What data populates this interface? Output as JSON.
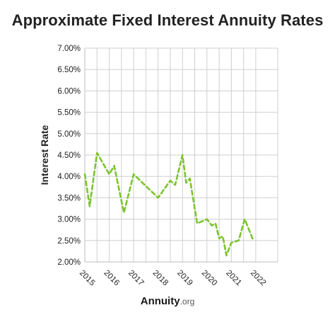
{
  "chart_data": {
    "type": "line",
    "title": "Approximate Fixed Interest Annuity Rates",
    "xlabel": "",
    "ylabel": "Interest Rate",
    "xlim": [
      2015,
      2022.9
    ],
    "ylim": [
      2.0,
      7.0
    ],
    "x_ticks": [
      "2015",
      "2016",
      "2017",
      "2018",
      "2019",
      "2020",
      "2021",
      "2022"
    ],
    "y_ticks": [
      "2.00%",
      "2.50%",
      "3.00%",
      "3.50%",
      "4.00%",
      "4.50%",
      "5.00%",
      "5.50%",
      "6.00%",
      "6.50%",
      "7.00%"
    ],
    "grid": true,
    "line_color": "#7dc42f",
    "line_style": "dashed",
    "series": [
      {
        "x": [
          2015.0,
          2015.2,
          2015.5,
          2016.0,
          2016.2,
          2016.6,
          2017.0,
          2018.0,
          2018.5,
          2018.7,
          2019.0,
          2019.15,
          2019.3,
          2019.6,
          2020.0,
          2020.2,
          2020.35,
          2020.5,
          2020.65,
          2020.8,
          2021.0,
          2021.3,
          2021.55,
          2021.9
        ],
        "y": [
          4.05,
          3.3,
          4.55,
          4.05,
          4.25,
          3.15,
          4.05,
          3.5,
          3.9,
          3.8,
          4.5,
          3.85,
          3.95,
          2.9,
          3.0,
          2.85,
          2.9,
          2.55,
          2.6,
          2.15,
          2.45,
          2.5,
          3.0,
          2.5
        ]
      }
    ]
  },
  "brand": {
    "name": "Annuity",
    "tld": ".org"
  }
}
